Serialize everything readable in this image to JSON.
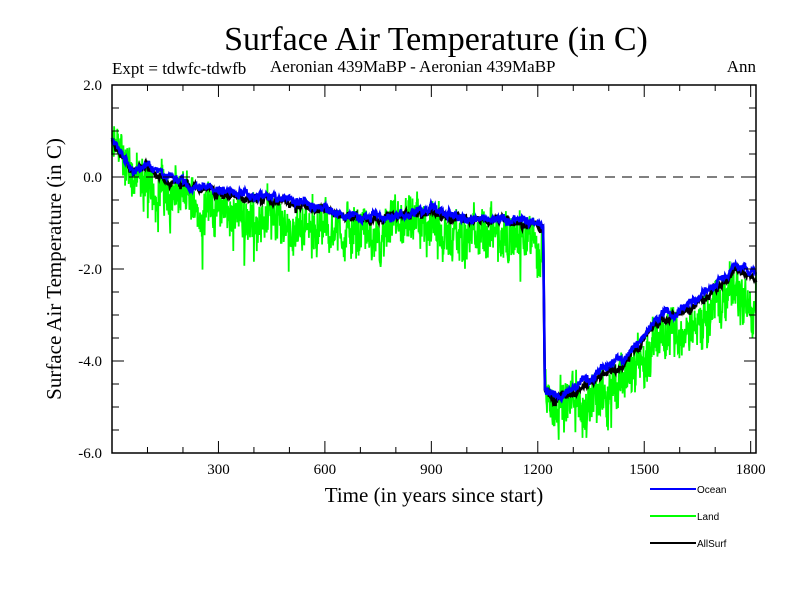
{
  "chart_data": {
    "type": "line",
    "title": "Surface Air Temperature (in C)",
    "subtitle_left": "Expt = tdwfc-tdwfb",
    "subtitle_center": "Aeronian 439MaBP - Aeronian 439MaBP",
    "subtitle_right": "Ann",
    "xlabel": "Time (in years since start)",
    "ylabel": "Surface Air Temperature (in C)",
    "xlim": [
      0,
      1815
    ],
    "ylim": [
      -6.0,
      2.0
    ],
    "x_ticks": [
      300,
      600,
      900,
      1200,
      1500,
      1800
    ],
    "x_tick_labels": [
      "300",
      "600",
      "900",
      "1200",
      "1500",
      "1800"
    ],
    "x_minor_step": 100,
    "y_ticks": [
      2.0,
      0.0,
      -2.0,
      -4.0,
      -6.0
    ],
    "y_tick_labels": [
      "2.0",
      "0.0",
      "-2.0",
      "-4.0",
      "-6.0"
    ],
    "y_minor_step": 0.5,
    "reference_line": {
      "y": 0.0,
      "style": "dashed",
      "color": "#000000"
    },
    "grid": false,
    "legend_position": "bottom-right",
    "series": [
      {
        "name": "Land",
        "color": "#00ff00",
        "noise_amplitude": 0.55,
        "points": [
          [
            0,
            0.6
          ],
          [
            30,
            0.5
          ],
          [
            60,
            -0.1
          ],
          [
            100,
            -0.1
          ],
          [
            150,
            -0.3
          ],
          [
            200,
            -0.4
          ],
          [
            300,
            -0.7
          ],
          [
            400,
            -0.9
          ],
          [
            500,
            -1.0
          ],
          [
            600,
            -1.1
          ],
          [
            700,
            -1.3
          ],
          [
            800,
            -1.2
          ],
          [
            900,
            -1.1
          ],
          [
            1000,
            -1.3
          ],
          [
            1100,
            -1.3
          ],
          [
            1200,
            -1.4
          ],
          [
            1215,
            -1.7
          ],
          [
            1220,
            -4.5
          ],
          [
            1250,
            -4.9
          ],
          [
            1300,
            -5.0
          ],
          [
            1400,
            -4.6
          ],
          [
            1450,
            -4.4
          ],
          [
            1500,
            -3.9
          ],
          [
            1550,
            -3.5
          ],
          [
            1600,
            -3.4
          ],
          [
            1650,
            -3.2
          ],
          [
            1700,
            -2.8
          ],
          [
            1760,
            -2.5
          ],
          [
            1815,
            -2.6
          ]
        ]
      },
      {
        "name": "AllSurf",
        "color": "#000000",
        "noise_amplitude": 0.15,
        "points": [
          [
            0,
            0.75
          ],
          [
            30,
            0.45
          ],
          [
            60,
            0.05
          ],
          [
            100,
            0.25
          ],
          [
            150,
            -0.05
          ],
          [
            200,
            -0.15
          ],
          [
            300,
            -0.35
          ],
          [
            400,
            -0.45
          ],
          [
            500,
            -0.55
          ],
          [
            600,
            -0.75
          ],
          [
            700,
            -0.95
          ],
          [
            800,
            -0.85
          ],
          [
            900,
            -0.75
          ],
          [
            1000,
            -0.95
          ],
          [
            1100,
            -0.95
          ],
          [
            1200,
            -1.05
          ],
          [
            1215,
            -1.15
          ],
          [
            1220,
            -4.6
          ],
          [
            1250,
            -4.85
          ],
          [
            1300,
            -4.7
          ],
          [
            1400,
            -4.2
          ],
          [
            1450,
            -4.0
          ],
          [
            1500,
            -3.5
          ],
          [
            1550,
            -3.1
          ],
          [
            1600,
            -3.0
          ],
          [
            1650,
            -2.75
          ],
          [
            1700,
            -2.45
          ],
          [
            1760,
            -2.0
          ],
          [
            1815,
            -2.2
          ]
        ]
      },
      {
        "name": "Ocean",
        "color": "#0000ff",
        "noise_amplitude": 0.15,
        "points": [
          [
            0,
            0.8
          ],
          [
            30,
            0.5
          ],
          [
            60,
            0.1
          ],
          [
            100,
            0.3
          ],
          [
            150,
            0.0
          ],
          [
            200,
            -0.1
          ],
          [
            300,
            -0.3
          ],
          [
            400,
            -0.4
          ],
          [
            500,
            -0.5
          ],
          [
            600,
            -0.7
          ],
          [
            700,
            -0.9
          ],
          [
            800,
            -0.8
          ],
          [
            900,
            -0.7
          ],
          [
            1000,
            -0.9
          ],
          [
            1100,
            -0.9
          ],
          [
            1200,
            -1.0
          ],
          [
            1215,
            -1.1
          ],
          [
            1220,
            -4.6
          ],
          [
            1250,
            -4.8
          ],
          [
            1300,
            -4.6
          ],
          [
            1400,
            -4.1
          ],
          [
            1450,
            -3.9
          ],
          [
            1500,
            -3.4
          ],
          [
            1550,
            -3.0
          ],
          [
            1600,
            -2.9
          ],
          [
            1650,
            -2.6
          ],
          [
            1700,
            -2.3
          ],
          [
            1760,
            -1.9
          ],
          [
            1815,
            -2.1
          ]
        ]
      }
    ],
    "legend_order": [
      "Ocean",
      "Land",
      "AllSurf"
    ]
  }
}
